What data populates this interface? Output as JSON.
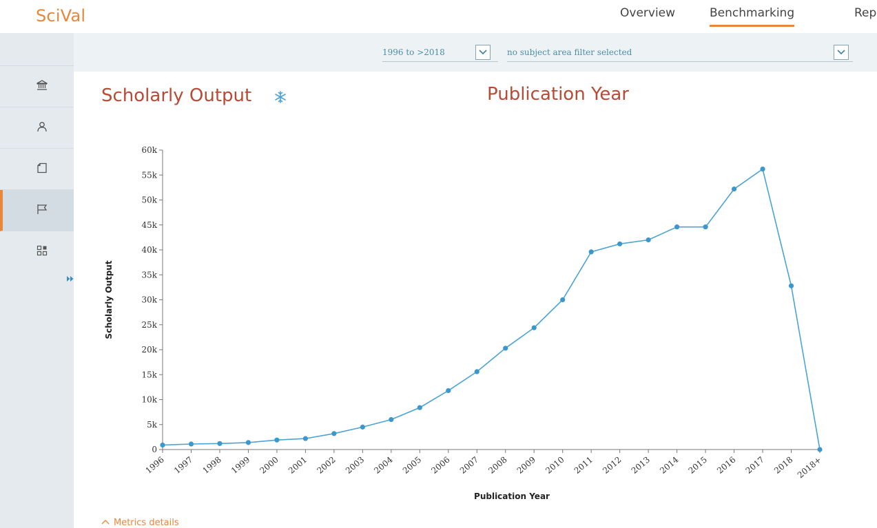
{
  "app": {
    "name": "SciVal"
  },
  "nav": {
    "overview": "Overview",
    "benchmarking": "Benchmarking",
    "reports": "Repo"
  },
  "filters": {
    "year_range": "1996 to >2018",
    "subject_area": "no subject area filter selected"
  },
  "sidebar": {
    "items": [
      {
        "icon": "institution-icon"
      },
      {
        "icon": "researcher-icon"
      },
      {
        "icon": "publication-set-icon"
      },
      {
        "icon": "country-flag-icon",
        "active": true
      },
      {
        "icon": "topics-grid-icon"
      }
    ]
  },
  "panel": {
    "metric_title": "Scholarly Output",
    "dimension_title": "Publication Year"
  },
  "footer": {
    "metrics_details": "Metrics details"
  },
  "colors": {
    "brand": "#e8863a",
    "title": "#b84a36",
    "series": "#4aa3d3"
  },
  "chart_data": {
    "type": "line",
    "xlabel": "Publication Year",
    "ylabel": "Scholarly Output",
    "ylim": [
      0,
      60000
    ],
    "ytick_values": [
      0,
      5000,
      10000,
      15000,
      20000,
      25000,
      30000,
      35000,
      40000,
      45000,
      50000,
      55000,
      60000
    ],
    "ytick_labels": [
      "0",
      "5k",
      "10k",
      "15k",
      "20k",
      "25k",
      "30k",
      "35k",
      "40k",
      "45k",
      "50k",
      "55k",
      "60k"
    ],
    "categories": [
      "1996",
      "1997",
      "1998",
      "1999",
      "2000",
      "2001",
      "2002",
      "2003",
      "2004",
      "2005",
      "2006",
      "2007",
      "2008",
      "2009",
      "2010",
      "2011",
      "2012",
      "2013",
      "2014",
      "2015",
      "2016",
      "2017",
      "2018",
      "2018+"
    ],
    "values": [
      900,
      1100,
      1200,
      1400,
      1900,
      2200,
      3200,
      4500,
      6000,
      8400,
      11800,
      15600,
      20300,
      24400,
      30000,
      39600,
      41200,
      42000,
      44600,
      44600,
      52200,
      56200,
      32800,
      0
    ],
    "grid": false,
    "legend": "none"
  }
}
